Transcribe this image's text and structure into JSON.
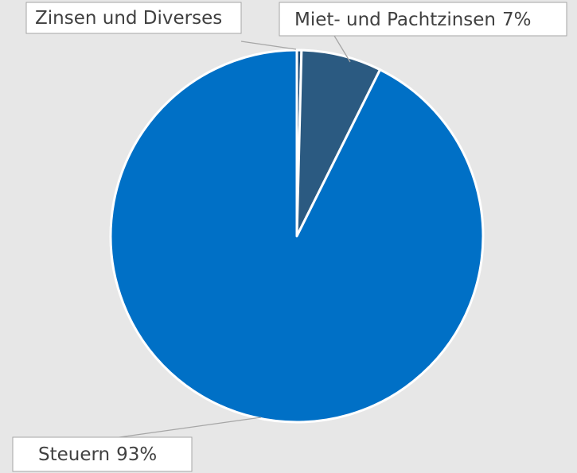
{
  "chart_data": {
    "type": "pie",
    "categories": [
      "Zinsen und Diverses",
      "Miet- und Pachtzinsen",
      "Steuern"
    ],
    "values": [
      0.4,
      7,
      93
    ],
    "value_labels": [
      null,
      "7%",
      "93%"
    ],
    "colors": [
      "#1f4e79",
      "#2b5a81",
      "#0070c6"
    ]
  }
}
